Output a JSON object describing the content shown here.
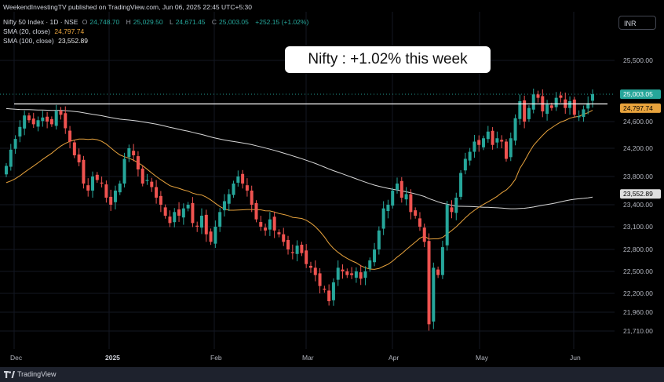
{
  "header": {
    "credit": "WeekendInvestingTV published on TradingView.com, Jun 06, 2025 22:45 UTC+5:30",
    "symbol": "Nifty 50 Index · 1D · NSE",
    "ohlc": {
      "o_label": "O",
      "o": "24,748.70",
      "h_label": "H",
      "h": "25,029.50",
      "l_label": "L",
      "l": "24,671.45",
      "c_label": "C",
      "c": "25,003.05",
      "change": "+252.15 (+1.02%)"
    },
    "sma20": {
      "label": "SMA (20, close)",
      "value": "24,797.74"
    },
    "sma100": {
      "label": "SMA (100, close)",
      "value": "23,552.89"
    }
  },
  "currency_button": "INR",
  "callout": "Nifty : +1.02% this week",
  "footer": {
    "brand": "TradingView"
  },
  "colors": {
    "up": "#26a69a",
    "down": "#ef5350",
    "sma20": "#e8a33d",
    "sma100": "#d8d8d8",
    "resistance": "#ffffff",
    "last_price": "#26a69a",
    "background": "#000000"
  },
  "chart_data": {
    "type": "candlestick",
    "x_ticks": [
      "Dec",
      "2025",
      "Feb",
      "Mar",
      "Apr",
      "May",
      "Jun"
    ],
    "y_ticks": [
      "25,500.00",
      "24,600.00",
      "24,200.00",
      "23,800.00",
      "23,400.00",
      "23,100.00",
      "22,800.00",
      "22,500.00",
      "22,200.00",
      "21,960.00",
      "21,710.00"
    ],
    "y_tick_values": [
      25500,
      24600,
      24200,
      23800,
      23400,
      23100,
      22800,
      22500,
      22200,
      21960,
      21710
    ],
    "price_labels": [
      {
        "text": "25,003.05",
        "value": 25003.05,
        "kind": "last_price"
      },
      {
        "text": "24,797.74",
        "value": 24797.74,
        "kind": "sma20"
      },
      {
        "text": "23,552.89",
        "value": 23552.89,
        "kind": "sma100"
      }
    ],
    "resistance_level": 24860,
    "last_close": 25003.05,
    "grid": true,
    "series": [
      {
        "name": "SMA (20, close)",
        "color": "#e8a33d"
      },
      {
        "name": "SMA (100, close)",
        "color": "#d8d8d8"
      }
    ]
  }
}
